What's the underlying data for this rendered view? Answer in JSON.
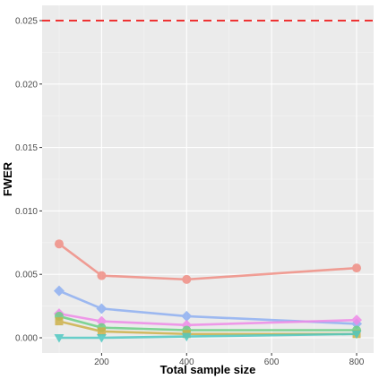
{
  "chart_data": {
    "type": "line",
    "title": "",
    "xlabel": "Total sample size",
    "ylabel": "FWER",
    "xlim": [
      60,
      840
    ],
    "ylim": [
      -0.0012,
      0.0262
    ],
    "x_ticks": [
      200,
      400,
      600,
      800
    ],
    "x_tick_labels": [
      "200",
      "400",
      "600",
      "800"
    ],
    "y_ticks": [
      0.0,
      0.005,
      0.01,
      0.015,
      0.02,
      0.025
    ],
    "y_tick_labels": [
      "0.000",
      "0.005",
      "0.010",
      "0.015",
      "0.020",
      "0.025"
    ],
    "grid": true,
    "legend": "none",
    "reference_line": {
      "y": 0.025,
      "color": "#ee3333",
      "style": "dashed"
    },
    "x": [
      100,
      200,
      400,
      800
    ],
    "series": [
      {
        "color": "#f08e84",
        "marker": "circle",
        "values": [
          0.0074,
          0.0049,
          0.0046,
          0.0055
        ]
      },
      {
        "color": "#8fb0f2",
        "marker": "diamond",
        "values": [
          0.0037,
          0.0023,
          0.0017,
          0.0011
        ]
      },
      {
        "color": "#ef8ae8",
        "marker": "diamond",
        "values": [
          0.0019,
          0.0013,
          0.001,
          0.0014
        ]
      },
      {
        "color": "#6ccf86",
        "marker": "circle",
        "values": [
          0.0017,
          0.0008,
          0.0006,
          0.0006
        ]
      },
      {
        "color": "#cdb14a",
        "marker": "square",
        "values": [
          0.0013,
          0.0005,
          0.0003,
          0.0003
        ]
      },
      {
        "color": "#4fc8c2",
        "marker": "triangle",
        "values": [
          0.0,
          0.0,
          0.0001,
          0.0003
        ]
      }
    ]
  },
  "colors": {
    "panel_background": "#ebebeb",
    "grid_major": "#ffffff",
    "grid_minor": "#f5f5f5",
    "tick_label": "#4d4d4d"
  }
}
